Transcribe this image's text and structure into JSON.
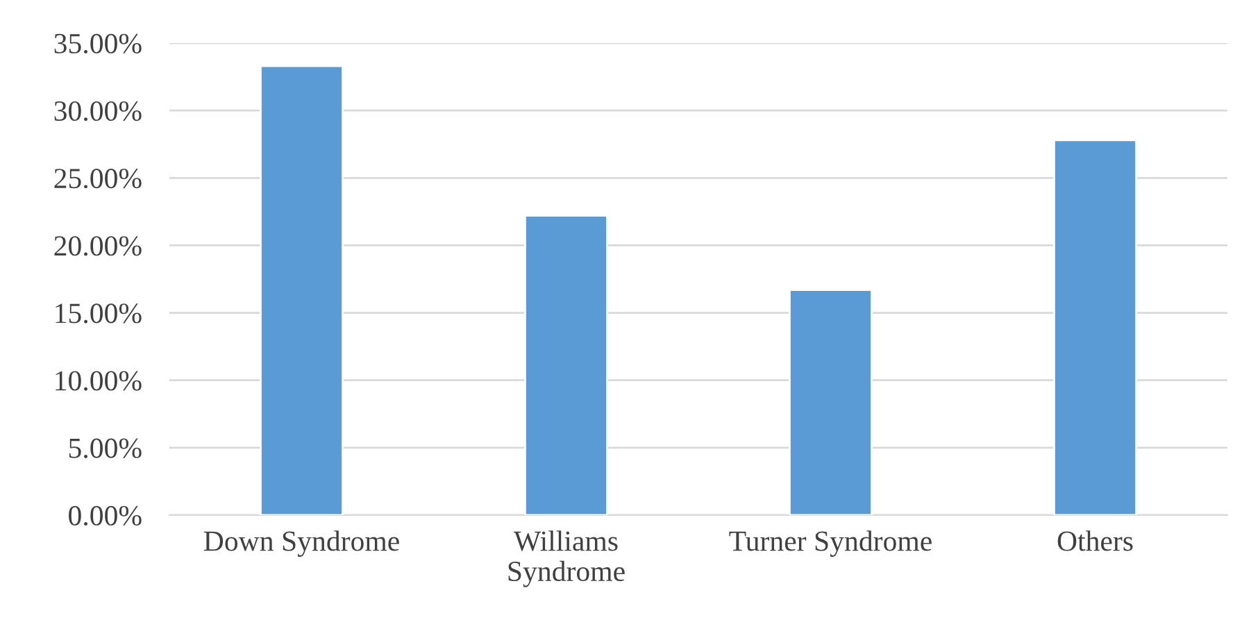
{
  "chart_data": {
    "type": "bar",
    "categories": [
      "Down Syndrome",
      "Williams\nSyndrome",
      "Turner Syndrome",
      "Others"
    ],
    "values": [
      33.3,
      22.2,
      16.7,
      27.8
    ],
    "color": "#5b9bd5",
    "ylim": [
      0,
      35
    ],
    "yticks": [
      {
        "value": 0,
        "label": "0.00%"
      },
      {
        "value": 5,
        "label": "5.00%"
      },
      {
        "value": 10,
        "label": "10.00%"
      },
      {
        "value": 15,
        "label": "15.00%"
      },
      {
        "value": 20,
        "label": "20.00%"
      },
      {
        "value": 25,
        "label": "25.00%"
      },
      {
        "value": 30,
        "label": "30.00%"
      },
      {
        "value": 35,
        "label": "35.00%"
      }
    ],
    "grid": "y",
    "legend": false
  }
}
